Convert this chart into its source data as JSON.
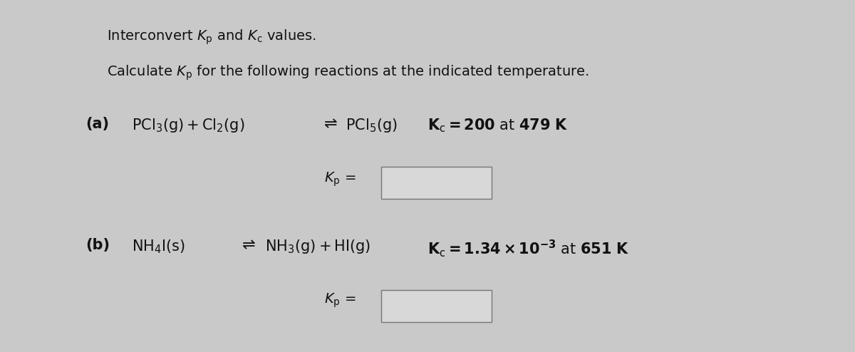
{
  "background_color": "#c9c9c9",
  "text_color": "#111111",
  "fig_width": 12.0,
  "fig_height": 4.94,
  "input_box_facecolor": "#d8d8d8",
  "input_box_edgecolor": "#777777",
  "fs_title": 14,
  "fs_body": 14,
  "fs_eq": 15,
  "fs_kp_label": 14
}
